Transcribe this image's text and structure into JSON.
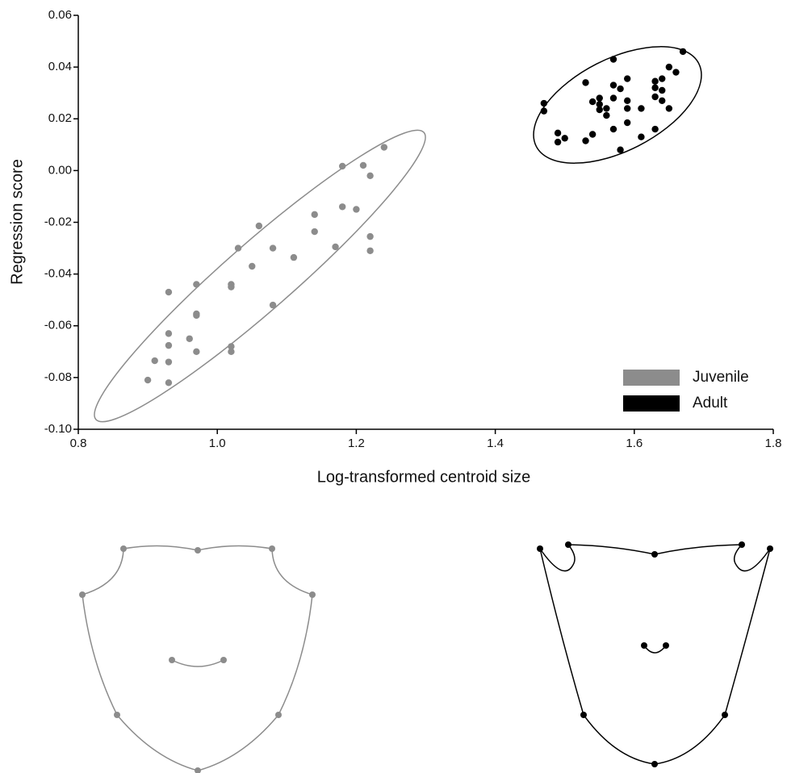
{
  "chart_data": {
    "type": "scatter",
    "x_label": "Log-transformed centroid size",
    "y_label": "Regression score",
    "xlim": [
      0.8,
      1.8
    ],
    "ylim": [
      -0.1,
      0.06
    ],
    "xticks": [
      0.8,
      {
        "value": 1.0,
        "label": "1.0"
      },
      1.2,
      1.4,
      1.6,
      1.8
    ],
    "yticks": [
      0.06,
      0.04,
      0.02,
      {
        "value": 0,
        "label": "0.00"
      },
      -0.02,
      -0.04,
      -0.06,
      -0.08,
      {
        "value": -0.1,
        "label": "-0.10"
      }
    ],
    "legend": "lower right",
    "series": [
      {
        "name": "Juvenile",
        "color": "#8c8c8c",
        "x": [
          0.9,
          0.91,
          0.93,
          0.93,
          0.93,
          0.93,
          0.93,
          0.96,
          0.97,
          0.97,
          0.97,
          0.97,
          1.02,
          1.02,
          1.02,
          1.02,
          1.03,
          1.05,
          1.06,
          1.08,
          1.08,
          1.11,
          1.14,
          1.14,
          1.17,
          1.18,
          1.18,
          1.2,
          1.21,
          1.22,
          1.22,
          1.22,
          1.24
        ],
        "values": [
          -0.081,
          -0.0735,
          -0.047,
          -0.063,
          -0.0676,
          -0.074,
          -0.082,
          -0.065,
          -0.044,
          -0.0554,
          -0.056,
          -0.07,
          -0.044,
          -0.045,
          -0.068,
          -0.07,
          -0.03,
          -0.037,
          -0.0214,
          -0.03,
          -0.052,
          -0.0336,
          -0.017,
          -0.0236,
          -0.0295,
          0.0017,
          -0.014,
          -0.015,
          0.002,
          -0.002,
          -0.0255,
          -0.031,
          0.009
        ]
      },
      {
        "name": "Adult",
        "color": "#000000",
        "x": [
          1.47,
          1.47,
          1.49,
          1.49,
          1.5,
          1.53,
          1.53,
          1.54,
          1.54,
          1.55,
          1.55,
          1.55,
          1.56,
          1.56,
          1.57,
          1.57,
          1.57,
          1.57,
          1.58,
          1.58,
          1.59,
          1.59,
          1.59,
          1.59,
          1.61,
          1.61,
          1.63,
          1.63,
          1.63,
          1.63,
          1.64,
          1.64,
          1.64,
          1.65,
          1.65,
          1.66,
          1.67
        ],
        "values": [
          0.026,
          0.023,
          0.0145,
          0.011,
          0.0125,
          0.034,
          0.0115,
          0.014,
          0.0266,
          0.028,
          0.0256,
          0.0235,
          0.024,
          0.0213,
          0.043,
          0.033,
          0.028,
          0.016,
          0.008,
          0.0316,
          0.0355,
          0.027,
          0.024,
          0.0185,
          0.024,
          0.013,
          0.0345,
          0.032,
          0.0285,
          0.016,
          0.0355,
          0.031,
          0.027,
          0.04,
          0.024,
          0.038,
          0.046
        ]
      }
    ]
  }
}
